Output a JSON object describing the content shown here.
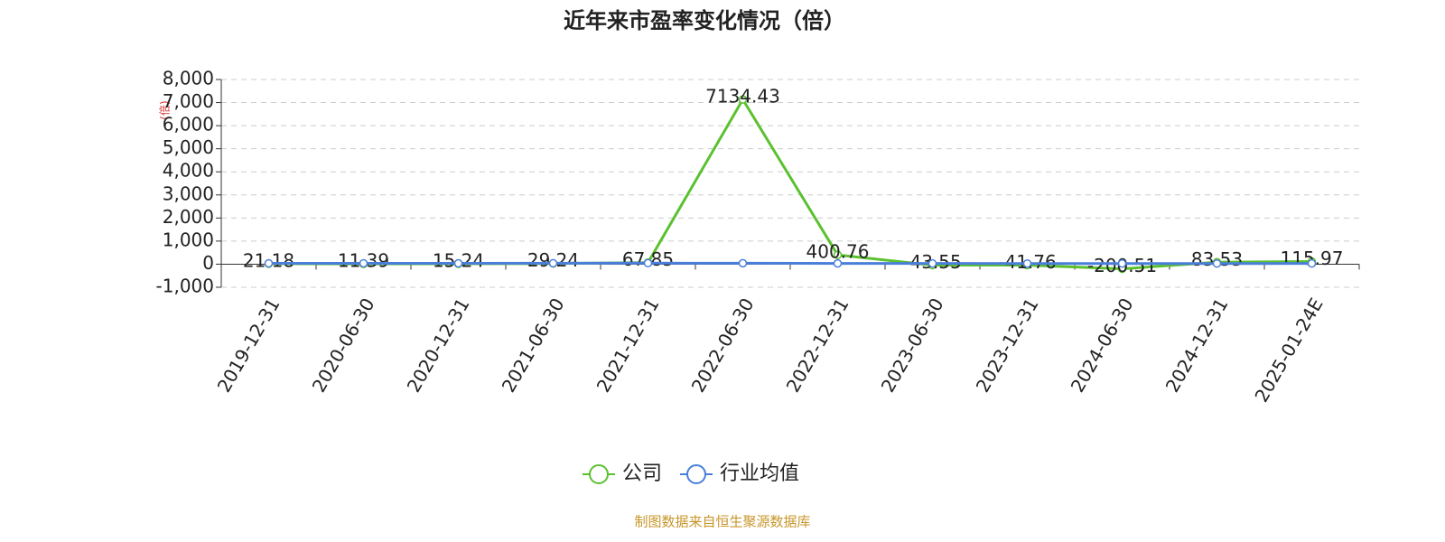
{
  "chart_data": {
    "type": "line",
    "title": "近年来市盈率变化情况（倍）",
    "y_label": "(倍)",
    "categories": [
      "2019-12-31",
      "2020-06-30",
      "2020-12-31",
      "2021-06-30",
      "2021-12-31",
      "2022-06-30",
      "2022-12-31",
      "2023-06-30",
      "2023-12-31",
      "2024-06-30",
      "2024-12-31",
      "2025-01-24E"
    ],
    "series": [
      {
        "name": "公司",
        "color": "#5bc12f",
        "values": [
          21.18,
          11.39,
          15.24,
          29.24,
          67.85,
          7134.43,
          400.76,
          -43.55,
          -41.76,
          -200.51,
          83.53,
          115.97
        ]
      },
      {
        "name": "行业均值",
        "color": "#4a7fd9",
        "values": [
          35,
          38,
          36,
          40,
          45,
          42,
          32,
          30,
          28,
          27,
          29,
          30
        ]
      }
    ],
    "ylim": [
      -1000,
      8000
    ],
    "yticks": [
      {
        "value": -1000,
        "label": "-1,000"
      },
      0,
      {
        "value": 1000,
        "label": "1,000"
      },
      {
        "value": 2000,
        "label": "2,000"
      },
      {
        "value": 3000,
        "label": "3,000"
      },
      {
        "value": 4000,
        "label": "4,000"
      },
      {
        "value": 5000,
        "label": "5,000"
      },
      {
        "value": 6000,
        "label": "6,000"
      },
      {
        "value": 7000,
        "label": "7,000"
      },
      {
        "value": 8000,
        "label": "8,000"
      }
    ],
    "grid": true,
    "source": "制图数据来自恒生聚源数据库"
  }
}
